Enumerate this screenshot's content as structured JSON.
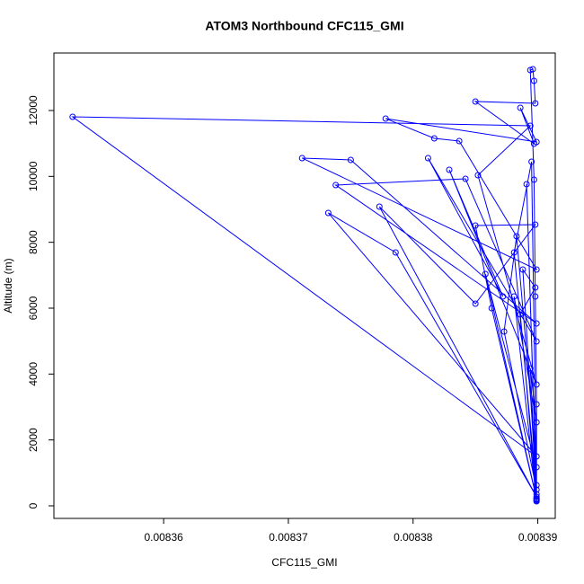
{
  "chart_data": {
    "type": "line",
    "title": "ATOM3 Northbound CFC115_GMI",
    "x_label": "CFC115_GMI",
    "y_label": "Altitude (m)",
    "color": "#0000ff",
    "markers": true,
    "x": [
      0.0083899,
      0.0083899,
      0.0083899,
      0.0083898,
      0.0083897,
      0.0083894,
      0.0083896,
      0.0083897,
      0.0083898,
      0.008385,
      0.0083897,
      0.0083886,
      0.0083899,
      0.0083778,
      0.0083817,
      0.0083837,
      0.0083899,
      0.0083711,
      0.008375,
      0.0083899,
      0.0083738,
      0.0083842,
      0.0083899,
      0.0083812,
      0.0083872,
      0.0083829,
      0.0083899,
      0.0083852,
      0.0083894,
      0.0083527,
      0.0083899,
      0.0083732,
      0.0083786,
      0.0083899,
      0.0083773,
      0.008385,
      0.0083898,
      0.008385,
      0.0083863,
      0.0083899,
      0.0083858,
      0.0083899,
      0.0083883,
      0.0083873,
      0.0083899,
      0.0083881,
      0.0083895,
      0.0083899,
      0.0083891,
      0.0083899,
      0.0083888,
      0.0083898,
      0.0083886,
      0.0083899,
      0.0083881,
      0.0083899,
      0.0083894,
      0.0083899
    ],
    "values": [
      218,
      627,
      3082,
      6355,
      9900,
      13227,
      13255,
      12900,
      12218,
      12273,
      10991,
      12082,
      11045,
      11755,
      11155,
      11073,
      7173,
      10555,
      10500,
      5536,
      9736,
      9927,
      4991,
      10555,
      6355,
      10200,
      3682,
      10036,
      11536,
      11809,
      1500,
      8891,
      7691,
      273,
      9082,
      6136,
      8536,
      8509,
      6000,
      218,
      7036,
      1173,
      8182,
      5291,
      491,
      7691,
      10445,
      191,
      9764,
      355,
      7173,
      6627,
      5809,
      136,
      6355,
      2536,
      4173,
      164
    ],
    "xlim": [
      0.0083512,
      0.0083914
    ],
    "ylim": [
      -382,
      13745
    ],
    "xticks": [
      0.00836,
      0.00837,
      0.00838,
      0.00839
    ],
    "yticks": [
      0,
      2000,
      4000,
      6000,
      8000,
      10000,
      12000
    ]
  }
}
